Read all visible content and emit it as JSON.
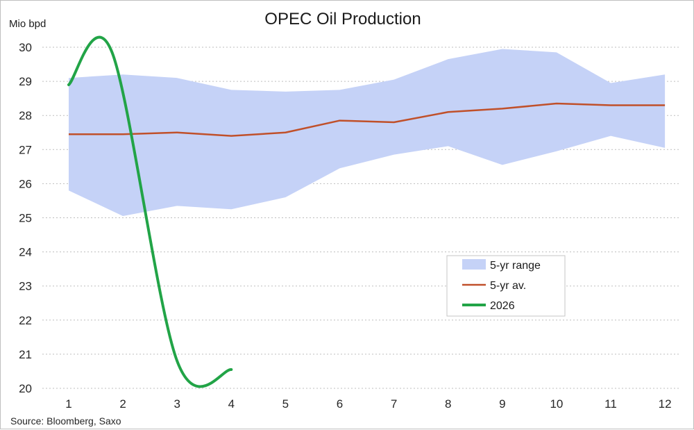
{
  "chart_data": {
    "type": "line",
    "title": "OPEC Oil Production",
    "ylabel": "Mio bpd",
    "source": "Source: Bloomberg, Saxo",
    "x": [
      1,
      2,
      3,
      4,
      5,
      6,
      7,
      8,
      9,
      10,
      11,
      12
    ],
    "x_tick_labels": [
      "1",
      "2",
      "3",
      "4",
      "5",
      "6",
      "7",
      "8",
      "9",
      "10",
      "11",
      "12"
    ],
    "ylim": [
      20,
      30
    ],
    "y_ticks": [
      20,
      21,
      22,
      23,
      24,
      25,
      26,
      27,
      28,
      29,
      30
    ],
    "grid": true,
    "legend_position": "center-right",
    "range": {
      "name": "5-yr range",
      "color": "#c5d2f7",
      "low": [
        25.8,
        25.05,
        25.35,
        25.25,
        25.6,
        26.45,
        26.85,
        27.1,
        26.55,
        26.95,
        27.4,
        27.05
      ],
      "high": [
        29.1,
        29.2,
        29.1,
        28.75,
        28.7,
        28.75,
        29.05,
        29.65,
        29.95,
        29.85,
        28.95,
        29.2
      ]
    },
    "series": [
      {
        "name": "5-yr av.",
        "color": "#c0502a",
        "x": [
          1,
          2,
          3,
          4,
          5,
          6,
          7,
          8,
          9,
          10,
          11,
          12
        ],
        "values": [
          27.45,
          27.45,
          27.5,
          27.4,
          27.5,
          27.85,
          27.8,
          28.1,
          28.2,
          28.35,
          28.3,
          28.3
        ]
      },
      {
        "name": "2026",
        "color": "#22a447",
        "x": [
          1,
          1.8,
          3,
          4
        ],
        "values": [
          28.9,
          29.85,
          20.8,
          20.55
        ]
      }
    ]
  }
}
